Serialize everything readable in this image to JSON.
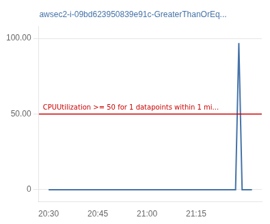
{
  "chart_data": {
    "type": "line",
    "title": "awsec2-i-09bd623950839e91c-GreaterThanOrEq...",
    "x": [
      0,
      14,
      28,
      42,
      50,
      54,
      56,
      57,
      58,
      59,
      60,
      61,
      62
    ],
    "values": [
      0,
      0,
      0,
      0,
      0,
      0,
      0,
      0,
      97,
      0,
      0,
      0,
      0
    ],
    "color": "#4472a8",
    "xlim": [
      -3,
      65
    ],
    "xticks": [
      {
        "value": 0,
        "label": "20:30"
      },
      {
        "value": 15,
        "label": "20:45"
      },
      {
        "value": 30,
        "label": "21:00"
      },
      {
        "value": 45,
        "label": "21:15"
      }
    ],
    "ylim": [
      -8,
      108
    ],
    "yticks": [
      0,
      {
        "value": 50,
        "label": "50.00"
      },
      {
        "value": 100,
        "label": "100.00"
      }
    ],
    "grid": "y",
    "annotations": [
      {
        "y": 50,
        "text": "CPUUtilization >= 50 for 1 datapoints within 1 mi...",
        "color": "#cc0000"
      }
    ]
  }
}
